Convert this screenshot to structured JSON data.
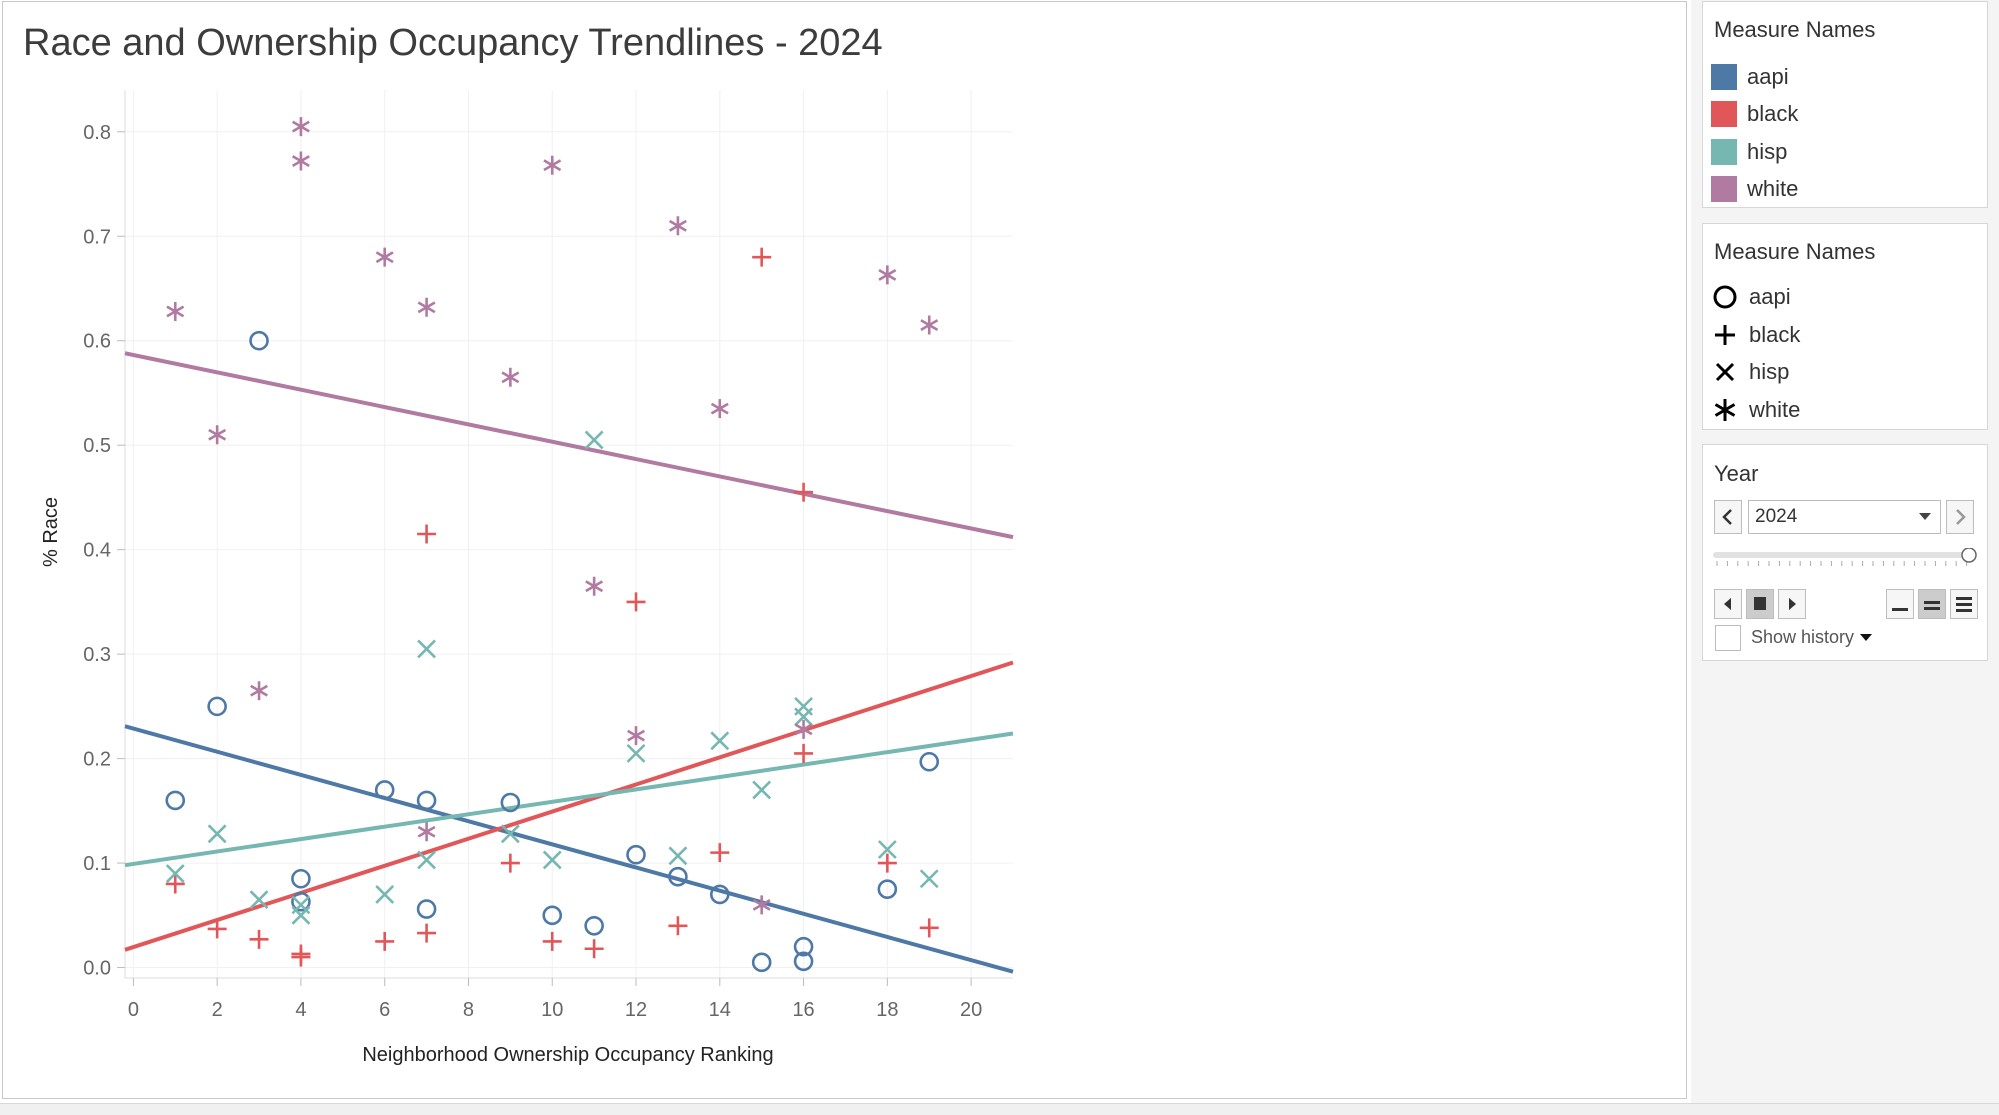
{
  "chart_data": {
    "type": "scatter",
    "title": "Race and Ownership Occupancy Trendlines - 2024",
    "xlabel": "Neighborhood Ownership Occupancy Ranking",
    "ylabel": "% Race",
    "xlim": [
      -0.2,
      21
    ],
    "ylim": [
      -0.01,
      0.84
    ],
    "x_ticks": [
      "0",
      "2",
      "4",
      "6",
      "8",
      "10",
      "12",
      "14",
      "16",
      "18",
      "20"
    ],
    "y_ticks": [
      "0.0",
      "0.1",
      "0.2",
      "0.3",
      "0.4",
      "0.5",
      "0.6",
      "0.7",
      "0.8"
    ],
    "grid": true,
    "series": [
      {
        "name": "aapi",
        "color": "#4e79a7",
        "shape": "circle",
        "trend": [
          [
            -0.2,
            0.231
          ],
          [
            21,
            -0.004
          ]
        ],
        "points": [
          [
            1,
            0.16
          ],
          [
            2,
            0.25
          ],
          [
            3,
            0.6
          ],
          [
            4,
            0.085
          ],
          [
            4,
            0.063
          ],
          [
            6,
            0.17
          ],
          [
            7,
            0.16
          ],
          [
            7,
            0.056
          ],
          [
            9,
            0.158
          ],
          [
            10,
            0.05
          ],
          [
            11,
            0.04
          ],
          [
            12,
            0.108
          ],
          [
            13,
            0.087
          ],
          [
            14,
            0.07
          ],
          [
            15,
            0.005
          ],
          [
            16,
            0.02
          ],
          [
            16,
            0.006
          ],
          [
            18,
            0.075
          ],
          [
            19,
            0.197
          ]
        ]
      },
      {
        "name": "black",
        "color": "#e15759",
        "shape": "plus",
        "trend": [
          [
            -0.2,
            0.017
          ],
          [
            21,
            0.292
          ]
        ],
        "points": [
          [
            1,
            0.08
          ],
          [
            2,
            0.037
          ],
          [
            3,
            0.027
          ],
          [
            4,
            0.013
          ],
          [
            4,
            0.01
          ],
          [
            6,
            0.025
          ],
          [
            7,
            0.415
          ],
          [
            7,
            0.033
          ],
          [
            9,
            0.1
          ],
          [
            10,
            0.025
          ],
          [
            11,
            0.018
          ],
          [
            12,
            0.35
          ],
          [
            13,
            0.04
          ],
          [
            14,
            0.11
          ],
          [
            15,
            0.68
          ],
          [
            16,
            0.455
          ],
          [
            16,
            0.205
          ],
          [
            18,
            0.1
          ],
          [
            19,
            0.038
          ]
        ]
      },
      {
        "name": "hisp",
        "color": "#76b7b2",
        "shape": "x",
        "trend": [
          [
            -0.2,
            0.098
          ],
          [
            21,
            0.224
          ]
        ],
        "points": [
          [
            1,
            0.09
          ],
          [
            2,
            0.128
          ],
          [
            3,
            0.065
          ],
          [
            4,
            0.06
          ],
          [
            4,
            0.05
          ],
          [
            6,
            0.07
          ],
          [
            7,
            0.305
          ],
          [
            7,
            0.103
          ],
          [
            9,
            0.128
          ],
          [
            10,
            0.103
          ],
          [
            11,
            0.505
          ],
          [
            12,
            0.205
          ],
          [
            13,
            0.107
          ],
          [
            14,
            0.217
          ],
          [
            15,
            0.17
          ],
          [
            16,
            0.25
          ],
          [
            16,
            0.24
          ],
          [
            18,
            0.113
          ],
          [
            19,
            0.085
          ]
        ]
      },
      {
        "name": "white",
        "color": "#b07aa1",
        "shape": "asterisk",
        "trend": [
          [
            -0.2,
            0.588
          ],
          [
            21,
            0.412
          ]
        ],
        "points": [
          [
            1,
            0.628
          ],
          [
            2,
            0.51
          ],
          [
            3,
            0.265
          ],
          [
            4,
            0.805
          ],
          [
            4,
            0.772
          ],
          [
            6,
            0.68
          ],
          [
            7,
            0.632
          ],
          [
            7,
            0.13
          ],
          [
            9,
            0.565
          ],
          [
            10,
            0.768
          ],
          [
            11,
            0.365
          ],
          [
            12,
            0.222
          ],
          [
            13,
            0.71
          ],
          [
            14,
            0.535
          ],
          [
            15,
            0.06
          ],
          [
            16,
            0.228
          ],
          [
            18,
            0.663
          ],
          [
            19,
            0.615
          ]
        ]
      }
    ]
  },
  "legend_color": {
    "title": "Measure Names",
    "items": [
      {
        "label": "aapi",
        "color": "#4e79a7"
      },
      {
        "label": "black",
        "color": "#e15759"
      },
      {
        "label": "hisp",
        "color": "#76b7b2"
      },
      {
        "label": "white",
        "color": "#b07aa1"
      }
    ]
  },
  "legend_shape": {
    "title": "Measure Names",
    "items": [
      {
        "label": "aapi",
        "icon": "circle-icon"
      },
      {
        "label": "black",
        "icon": "plus-icon"
      },
      {
        "label": "hisp",
        "icon": "x-icon"
      },
      {
        "label": "white",
        "icon": "asterisk-icon"
      }
    ]
  },
  "year_filter": {
    "title": "Year",
    "value": "2024",
    "slider_level": 1.0,
    "show_history_label": "Show history",
    "show_history_checked": false
  }
}
